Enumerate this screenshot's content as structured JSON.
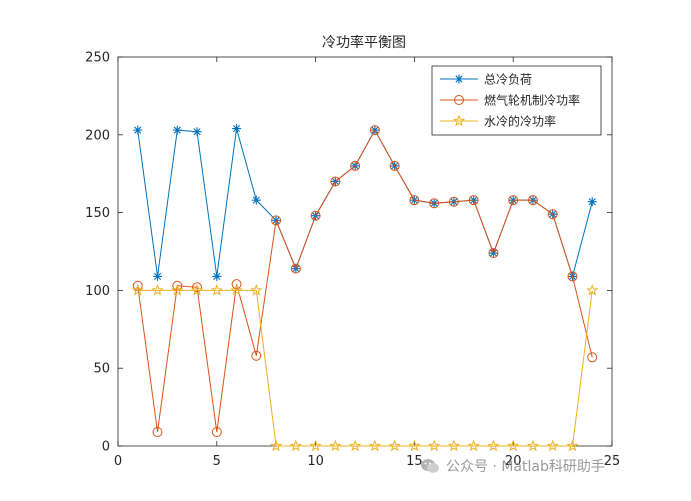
{
  "chart_data": {
    "type": "line",
    "title": "冷功率平衡图",
    "xlabel": "",
    "ylabel": "",
    "xlim": [
      0,
      25
    ],
    "ylim": [
      0,
      250
    ],
    "xticks": [
      0,
      5,
      10,
      15,
      20,
      25
    ],
    "yticks": [
      0,
      50,
      100,
      150,
      200,
      250
    ],
    "grid": false,
    "legend_position": "top-right",
    "x": [
      1,
      2,
      3,
      4,
      5,
      6,
      7,
      8,
      9,
      10,
      11,
      12,
      13,
      14,
      15,
      16,
      17,
      18,
      19,
      20,
      21,
      22,
      23,
      24
    ],
    "series": [
      {
        "name": "总冷负荷",
        "color": "#0072BD",
        "marker": "asterisk",
        "values": [
          203,
          109,
          203,
          202,
          109,
          204,
          158,
          145,
          114,
          148,
          170,
          180,
          203,
          180,
          158,
          156,
          157,
          158,
          124,
          158,
          158,
          149,
          109,
          157
        ]
      },
      {
        "name": "燃气轮机制冷功率",
        "color": "#D95319",
        "marker": "circle",
        "values": [
          103,
          9,
          103,
          102,
          9,
          104,
          58,
          145,
          114,
          148,
          170,
          180,
          203,
          180,
          158,
          156,
          157,
          158,
          124,
          158,
          158,
          149,
          109,
          57
        ]
      },
      {
        "name": "水冷的冷功率",
        "color": "#EDB120",
        "marker": "star",
        "values": [
          100,
          100,
          100,
          100,
          100,
          100,
          100,
          0,
          0,
          0,
          0,
          0,
          0,
          0,
          0,
          0,
          0,
          0,
          0,
          0,
          0,
          0,
          0,
          100
        ]
      }
    ]
  },
  "watermark": {
    "icon": "wechat-icon",
    "text": "公众号 · Matlab科研助手"
  }
}
